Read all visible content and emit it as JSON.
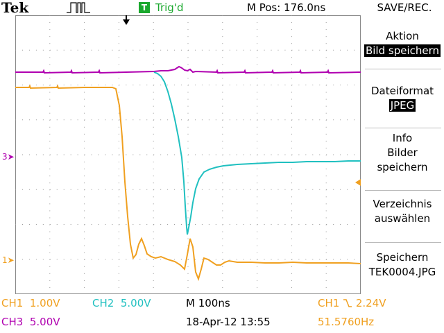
{
  "header": {
    "brand": "Tek",
    "trigger_badge": "T",
    "trigger_status": "Trig'd",
    "position": "M Pos: 176.0ns",
    "menu_title": "SAVE/REC."
  },
  "menu": {
    "action": {
      "label": "Aktion",
      "value": "Bild speichern"
    },
    "format": {
      "label": "Dateiformat",
      "value": "JPEG"
    },
    "info": {
      "line1": "Info",
      "line2": "Bilder",
      "line3": "speichern"
    },
    "dir": {
      "line1": "Verzeichnis",
      "line2": "auswählen"
    },
    "save": {
      "line1": "Speichern",
      "line2": "TEK0004.JPG"
    }
  },
  "channels": {
    "ch1": {
      "label": "CH1",
      "scale": "1.00V",
      "marker": "1",
      "color": "#f0a020"
    },
    "ch2": {
      "label": "CH2",
      "scale": "5.00V",
      "color": "#20c0c0"
    },
    "ch3": {
      "label": "CH3",
      "scale": "5.00V",
      "marker": "3",
      "color": "#b000b0"
    }
  },
  "timebase": "M 100ns",
  "datetime": "18-Apr-12 13:55",
  "trigger": {
    "source": "CH1",
    "slope_icon": "falling-edge-icon",
    "level": "2.24V"
  },
  "frequency": "51.5760Hz"
}
